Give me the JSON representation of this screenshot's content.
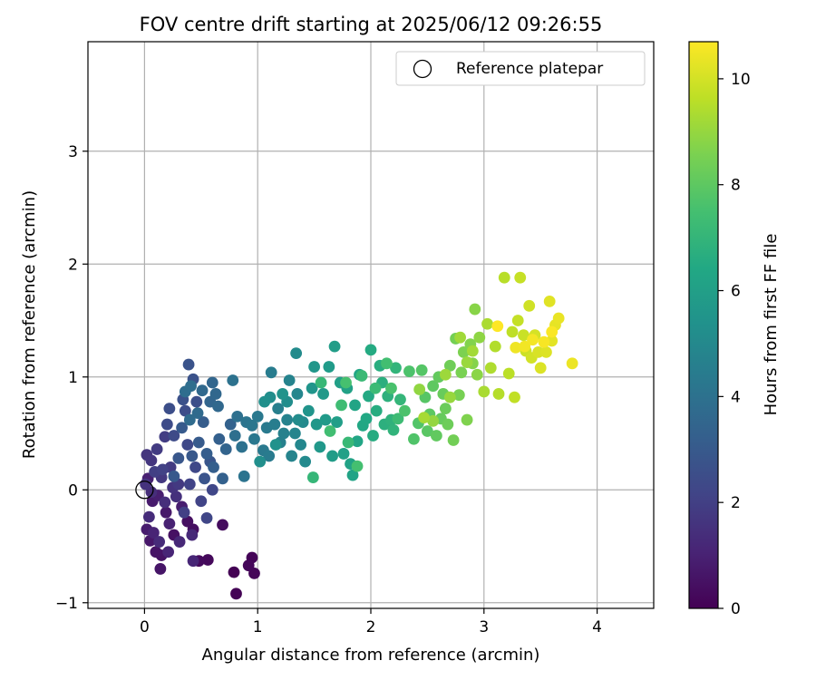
{
  "chart_data": {
    "type": "scatter",
    "title": "FOV centre drift starting at 2025/06/12 09:26:55",
    "xlabel": "Angular distance from reference (arcmin)",
    "ylabel": "Rotation from reference (arcmin)",
    "xlim": [
      -0.5,
      4.5
    ],
    "ylim": [
      -1.05,
      3.97
    ],
    "xticks": [
      0,
      1,
      2,
      3,
      4
    ],
    "yticks": [
      -1,
      0,
      1,
      2,
      3
    ],
    "grid": true,
    "legend": {
      "position": "top-right",
      "label": "Reference platepar"
    },
    "reference_point": {
      "x": 0,
      "y": 0
    },
    "colorbar": {
      "label": "Hours from first FF file",
      "min": 0,
      "max": 10.7,
      "ticks": [
        0,
        2,
        4,
        6,
        8,
        10
      ],
      "colormap": "viridis"
    },
    "colors": {
      "axes": "#000000",
      "grid": "#b0b0b0"
    },
    "series": [
      {
        "points": [
          [
            0.79,
            -0.73
          ],
          [
            0.81,
            -0.92
          ],
          [
            0.95,
            -0.6
          ],
          [
            0.97,
            -0.74
          ],
          [
            0.92,
            -0.67
          ],
          [
            0.56,
            -0.62
          ],
          [
            0.48,
            -0.63
          ],
          [
            0.69,
            -0.31
          ],
          [
            0.43,
            -0.35
          ],
          [
            0.38,
            -0.28
          ],
          [
            0.26,
            -0.4
          ],
          [
            0.15,
            -0.58
          ],
          [
            0.1,
            -0.55
          ],
          [
            0.14,
            -0.7
          ],
          [
            0.05,
            -0.45
          ],
          [
            0.19,
            -0.2
          ],
          [
            0.07,
            -0.1
          ],
          [
            0.02,
            -0.35
          ],
          [
            0.33,
            -0.15
          ],
          [
            0.12,
            -0.05
          ],
          [
            0.03,
            0.1
          ],
          [
            0.22,
            -0.3
          ],
          [
            0.08,
            -0.38
          ],
          [
            0.21,
            -0.55
          ],
          [
            0.43,
            -0.63
          ],
          [
            0.31,
            -0.46
          ],
          [
            0.42,
            -0.4
          ],
          [
            0.13,
            -0.46
          ],
          [
            0.04,
            -0.24
          ],
          [
            0.06,
            -0.02
          ],
          [
            0.18,
            -0.11
          ],
          [
            0.28,
            -0.06
          ],
          [
            0.01,
            0.05
          ],
          [
            0.25,
            0.02
          ],
          [
            0.02,
            0.31
          ],
          [
            0.06,
            0.26
          ],
          [
            0.15,
            0.11
          ],
          [
            0.3,
            0.05
          ],
          [
            0.23,
            0.2
          ],
          [
            0.11,
            0.36
          ],
          [
            0.18,
            0.47
          ],
          [
            0.09,
            0.16
          ],
          [
            0.35,
            -0.2
          ],
          [
            0.16,
            0.18
          ],
          [
            0.4,
            0.05
          ],
          [
            0.5,
            -0.1
          ],
          [
            0.55,
            -0.25
          ],
          [
            0.6,
            0.0
          ],
          [
            0.45,
            0.2
          ],
          [
            0.38,
            0.4
          ],
          [
            0.26,
            0.48
          ],
          [
            0.2,
            0.58
          ],
          [
            0.36,
            0.7
          ],
          [
            0.22,
            0.72
          ],
          [
            0.46,
            0.78
          ],
          [
            0.34,
            0.8
          ],
          [
            0.43,
            0.98
          ],
          [
            0.39,
            1.11
          ],
          [
            0.53,
            0.1
          ],
          [
            0.58,
            0.25
          ],
          [
            0.3,
            0.28
          ],
          [
            0.42,
            0.3
          ],
          [
            0.26,
            0.12
          ],
          [
            0.33,
            0.55
          ],
          [
            0.48,
            0.42
          ],
          [
            0.52,
            0.6
          ],
          [
            0.55,
            0.32
          ],
          [
            0.61,
            0.2
          ],
          [
            0.66,
            0.45
          ],
          [
            0.69,
            0.1
          ],
          [
            0.76,
            0.58
          ],
          [
            0.72,
            0.36
          ],
          [
            0.58,
            0.78
          ],
          [
            0.6,
            0.95
          ],
          [
            0.63,
            0.85
          ],
          [
            0.65,
            0.74
          ],
          [
            0.51,
            0.88
          ],
          [
            0.47,
            0.68
          ],
          [
            0.4,
            0.62
          ],
          [
            0.36,
            0.87
          ],
          [
            0.41,
            0.92
          ],
          [
            0.8,
            0.48
          ],
          [
            0.82,
            0.65
          ],
          [
            0.86,
            0.38
          ],
          [
            0.78,
            0.97
          ],
          [
            0.88,
            0.12
          ],
          [
            0.9,
            0.6
          ],
          [
            0.95,
            0.57
          ],
          [
            0.97,
            0.45
          ],
          [
            1.0,
            0.65
          ],
          [
            1.05,
            0.35
          ],
          [
            1.08,
            0.55
          ],
          [
            1.1,
            0.3
          ],
          [
            1.12,
            1.04
          ],
          [
            1.15,
            0.58
          ],
          [
            1.18,
            0.72
          ],
          [
            1.2,
            0.42
          ],
          [
            1.23,
            0.5
          ],
          [
            1.26,
            0.62
          ],
          [
            1.28,
            0.97
          ],
          [
            1.3,
            0.3
          ],
          [
            1.33,
            0.5
          ],
          [
            1.35,
            0.85
          ],
          [
            1.38,
            0.4
          ],
          [
            1.4,
            0.6
          ],
          [
            1.42,
            0.25
          ],
          [
            1.34,
            1.21
          ],
          [
            1.36,
            0.62
          ],
          [
            1.26,
            0.78
          ],
          [
            1.11,
            0.82
          ],
          [
            1.02,
            0.25
          ],
          [
            1.06,
            0.78
          ],
          [
            1.16,
            0.4
          ],
          [
            1.22,
            0.85
          ],
          [
            1.45,
            0.7
          ],
          [
            1.48,
            0.9
          ],
          [
            1.5,
            1.09
          ],
          [
            1.52,
            0.58
          ],
          [
            1.55,
            0.38
          ],
          [
            1.58,
            0.85
          ],
          [
            1.6,
            0.62
          ],
          [
            1.63,
            1.09
          ],
          [
            1.66,
            0.3
          ],
          [
            1.68,
            1.27
          ],
          [
            1.7,
            0.6
          ],
          [
            1.73,
            0.95
          ],
          [
            1.76,
            0.32
          ],
          [
            1.79,
            0.9
          ],
          [
            1.82,
            0.23
          ],
          [
            1.84,
            0.13
          ],
          [
            1.86,
            0.75
          ],
          [
            1.88,
            0.43
          ],
          [
            1.9,
            1.02
          ],
          [
            1.93,
            0.57
          ],
          [
            1.96,
            0.63
          ],
          [
            1.98,
            0.83
          ],
          [
            2.0,
            1.24
          ],
          [
            2.02,
            0.48
          ],
          [
            2.05,
            0.7
          ],
          [
            2.08,
            1.1
          ],
          [
            2.1,
            0.95
          ],
          [
            2.12,
            0.58
          ],
          [
            2.15,
            0.83
          ],
          [
            2.18,
            0.62
          ],
          [
            2.2,
            0.53
          ],
          [
            2.22,
            1.08
          ],
          [
            2.26,
            0.8
          ],
          [
            1.49,
            0.11
          ],
          [
            1.56,
            0.95
          ],
          [
            1.8,
            0.42
          ],
          [
            1.92,
            1.01
          ],
          [
            2.04,
            0.9
          ],
          [
            2.24,
            0.63
          ],
          [
            1.74,
            0.75
          ],
          [
            1.64,
            0.52
          ],
          [
            2.14,
            1.12
          ],
          [
            1.88,
            0.21
          ],
          [
            1.78,
            0.95
          ],
          [
            2.18,
            0.9
          ],
          [
            2.3,
            0.7
          ],
          [
            2.34,
            1.05
          ],
          [
            2.38,
            0.45
          ],
          [
            2.42,
            0.59
          ],
          [
            2.45,
            1.06
          ],
          [
            2.48,
            0.82
          ],
          [
            2.5,
            0.52
          ],
          [
            2.52,
            0.67
          ],
          [
            2.55,
            0.92
          ],
          [
            2.58,
            0.48
          ],
          [
            2.6,
            1.0
          ],
          [
            2.62,
            0.63
          ],
          [
            2.64,
            0.85
          ],
          [
            2.66,
            0.72
          ],
          [
            2.68,
            0.58
          ],
          [
            2.7,
            1.1
          ],
          [
            2.73,
            0.44
          ],
          [
            2.75,
            1.34
          ],
          [
            2.78,
            0.84
          ],
          [
            2.8,
            1.04
          ],
          [
            2.82,
            1.22
          ],
          [
            2.85,
            0.62
          ],
          [
            2.88,
            1.29
          ],
          [
            2.9,
            1.12
          ],
          [
            2.92,
            1.6
          ],
          [
            2.94,
            1.02
          ],
          [
            2.96,
            1.35
          ],
          [
            2.43,
            0.89
          ],
          [
            2.55,
            0.61
          ],
          [
            2.7,
            0.82
          ],
          [
            2.85,
            1.13
          ],
          [
            2.66,
            1.02
          ],
          [
            2.79,
            1.35
          ],
          [
            2.9,
            1.23
          ],
          [
            2.47,
            0.64
          ],
          [
            3.0,
            0.87
          ],
          [
            3.03,
            1.47
          ],
          [
            3.06,
            1.08
          ],
          [
            3.1,
            1.27
          ],
          [
            3.13,
            0.85
          ],
          [
            3.18,
            1.88
          ],
          [
            3.22,
            1.03
          ],
          [
            3.25,
            1.4
          ],
          [
            3.27,
            0.82
          ],
          [
            3.3,
            1.5
          ],
          [
            3.32,
            1.88
          ],
          [
            3.35,
            1.37
          ],
          [
            3.37,
            1.23
          ],
          [
            3.4,
            1.63
          ],
          [
            3.42,
            1.17
          ],
          [
            3.45,
            1.37
          ],
          [
            3.48,
            1.22
          ],
          [
            3.5,
            1.08
          ],
          [
            3.55,
            1.22
          ],
          [
            3.58,
            1.67
          ],
          [
            3.6,
            1.32
          ],
          [
            3.63,
            1.46
          ],
          [
            3.66,
            1.52
          ],
          [
            3.78,
            1.12
          ],
          [
            3.28,
            1.26
          ],
          [
            3.36,
            1.27
          ],
          [
            3.43,
            1.33
          ],
          [
            3.53,
            1.31
          ],
          [
            3.6,
            1.4
          ],
          [
            3.12,
            1.45
          ]
        ]
      }
    ]
  }
}
